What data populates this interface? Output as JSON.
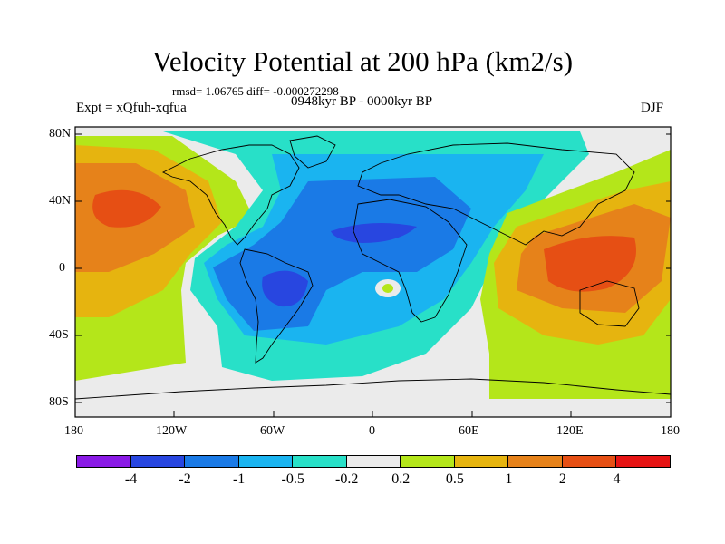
{
  "title": "Velocity Potential at 200 hPa (km2/s)",
  "stats": "rmsd= 1.06765 diff= -0.000272298",
  "experiment": "Expt = xQfuh-xqfua",
  "period": "0948kyr BP - 0000kyr BP",
  "season": "DJF",
  "y_axis_labels": [
    "80N",
    "40N",
    "0",
    "40S",
    "80S"
  ],
  "x_axis_labels": [
    "180",
    "120W",
    "60W",
    "0",
    "60E",
    "120E",
    "180"
  ],
  "colorbar": {
    "colors": [
      "#8a1ae6",
      "#2846e0",
      "#1a7ae6",
      "#1ab4f0",
      "#28e0c8",
      "#ebebeb",
      "#b4e61a",
      "#e6b40f",
      "#e6821a",
      "#e64f14",
      "#e61414"
    ],
    "labels": [
      "-4",
      "-2",
      "-1",
      "-0.5",
      "-0.2",
      "0.2",
      "0.5",
      "1",
      "2",
      "4"
    ]
  },
  "map_colors": {
    "land_outline": "#000000",
    "neutral": "#ebebeb"
  }
}
